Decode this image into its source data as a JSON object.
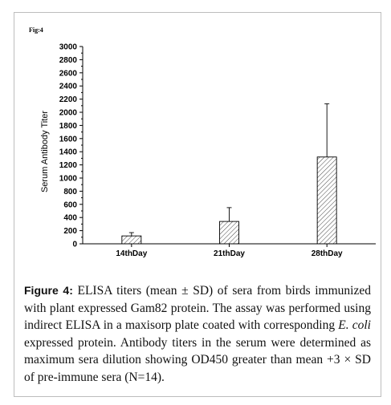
{
  "figure_tag": "Fig:4",
  "caption": {
    "lead": "Figure 4:",
    "part1": " ELISA titers (mean ± SD) of sera from birds immunized with plant expressed Gam82 protein. The assay was performed using indirect ELISA in a maxisorp plate coated with corresponding ",
    "italic": "E. coli",
    "part2": " expressed protein. Antibody titers in the serum were determined as maximum sera dilution showing OD450 greater than mean +3 × SD of pre-immune sera (N=14)."
  },
  "chart_data": {
    "type": "bar",
    "title": "",
    "xlabel": "",
    "ylabel": "Serum Antibody Titer",
    "categories": [
      "14thDay",
      "21thDay",
      "28thDay"
    ],
    "values": [
      120,
      340,
      1320
    ],
    "error_upper": [
      170,
      550,
      2130
    ],
    "ylim": [
      0,
      3000
    ],
    "yticks": [
      0,
      200,
      400,
      600,
      800,
      1000,
      1200,
      1400,
      1600,
      1800,
      2000,
      2200,
      2400,
      2600,
      2800,
      3000
    ],
    "bar_fill": "hatched",
    "grid": false,
    "legend": "none"
  }
}
